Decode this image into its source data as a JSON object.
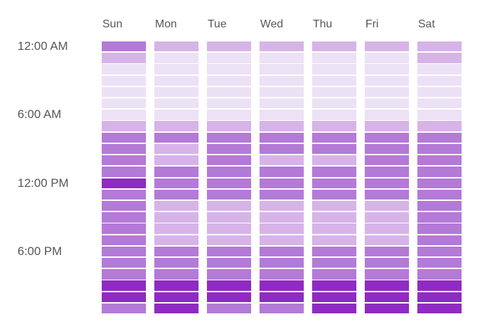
{
  "background": "#ffffff",
  "label_color": "#575757",
  "chart_data": {
    "type": "heatmap",
    "title": "",
    "columns": [
      "Sun",
      "Mon",
      "Tue",
      "Wed",
      "Thu",
      "Fri",
      "Sat"
    ],
    "rows": 24,
    "y_tick_labels": [
      {
        "row": 0,
        "label": "12:00 AM"
      },
      {
        "row": 6,
        "label": "6:00 AM"
      },
      {
        "row": 12,
        "label": "12:00 PM"
      },
      {
        "row": 18,
        "label": "6:00 PM"
      }
    ],
    "legend": "none",
    "grid_lines": "off",
    "intensity_levels": 4,
    "palette": [
      "#EDE1F5",
      "#D7B4E8",
      "#B47AD7",
      "#8F2BC2"
    ],
    "grid": [
      [
        2,
        1,
        1,
        1,
        1,
        1,
        1
      ],
      [
        1,
        0,
        0,
        0,
        0,
        0,
        1
      ],
      [
        0,
        0,
        0,
        0,
        0,
        0,
        0
      ],
      [
        0,
        0,
        0,
        0,
        0,
        0,
        0
      ],
      [
        0,
        0,
        0,
        0,
        0,
        0,
        0
      ],
      [
        0,
        0,
        0,
        0,
        0,
        0,
        0
      ],
      [
        0,
        0,
        0,
        0,
        0,
        0,
        0
      ],
      [
        1,
        1,
        1,
        1,
        1,
        1,
        1
      ],
      [
        2,
        2,
        2,
        2,
        2,
        2,
        2
      ],
      [
        2,
        1,
        2,
        2,
        2,
        2,
        2
      ],
      [
        2,
        1,
        2,
        1,
        1,
        2,
        2
      ],
      [
        2,
        2,
        2,
        2,
        2,
        2,
        2
      ],
      [
        3,
        2,
        2,
        2,
        2,
        2,
        2
      ],
      [
        2,
        2,
        2,
        2,
        2,
        2,
        2
      ],
      [
        2,
        1,
        1,
        1,
        1,
        1,
        2
      ],
      [
        2,
        1,
        1,
        1,
        1,
        1,
        2
      ],
      [
        2,
        1,
        1,
        1,
        1,
        1,
        2
      ],
      [
        2,
        1,
        1,
        1,
        1,
        1,
        2
      ],
      [
        2,
        2,
        2,
        2,
        2,
        2,
        2
      ],
      [
        2,
        2,
        2,
        2,
        2,
        2,
        2
      ],
      [
        2,
        2,
        2,
        2,
        2,
        2,
        2
      ],
      [
        3,
        3,
        3,
        3,
        3,
        3,
        3
      ],
      [
        3,
        3,
        3,
        3,
        3,
        3,
        3
      ],
      [
        2,
        3,
        2,
        2,
        3,
        3,
        3
      ]
    ]
  }
}
